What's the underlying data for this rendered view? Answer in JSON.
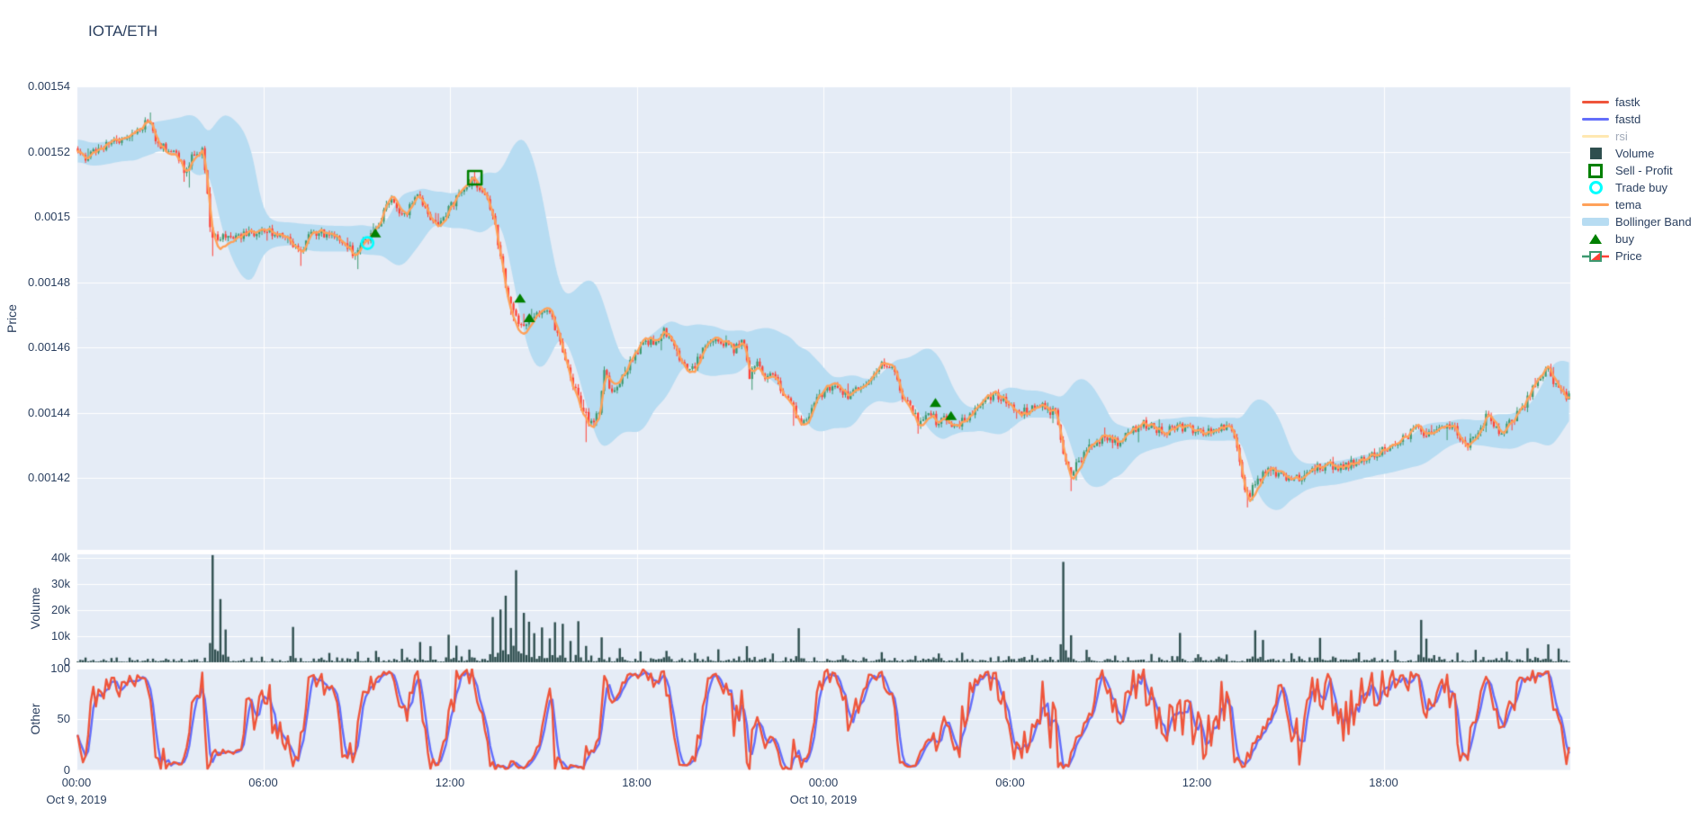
{
  "title": "IOTA/ETH",
  "colors": {
    "background": "#ffffff",
    "panel": "#E5ECF6",
    "grid": "#ffffff",
    "text": "#2a3f5f",
    "muted_text": "rgba(42,63,95,0.45)",
    "fastk": "#EF553B",
    "fastd": "#636EFA",
    "rsi": "#FECB52",
    "tema": "#FFA15A",
    "bollinger": "#b7dcf2",
    "volume": "#2F4F4F",
    "candle_up": "#3D9970",
    "candle_down": "#FF4136",
    "buy_marker": "#008000",
    "sell_profit_marker": "#008000",
    "trade_buy_marker": "#00FFFF"
  },
  "axes": {
    "price": {
      "title": "Price",
      "ticks": [
        {
          "label": "0.00154",
          "value": 0.00154
        },
        {
          "label": "0.00152",
          "value": 0.00152
        },
        {
          "label": "0.0015",
          "value": 0.0015
        },
        {
          "label": "0.00148",
          "value": 0.00148
        },
        {
          "label": "0.00146",
          "value": 0.00146
        },
        {
          "label": "0.00144",
          "value": 0.00144
        },
        {
          "label": "0.00142",
          "value": 0.00142
        }
      ]
    },
    "volume": {
      "title": "Volume",
      "ticks": [
        {
          "label": "0",
          "value": 0
        },
        {
          "label": "10k",
          "value": 10000
        },
        {
          "label": "20k",
          "value": 20000
        },
        {
          "label": "30k",
          "value": 30000
        },
        {
          "label": "40k",
          "value": 40000
        }
      ]
    },
    "other": {
      "title": "Other",
      "ticks": [
        {
          "label": "0",
          "value": 0
        },
        {
          "label": "50",
          "value": 50
        },
        {
          "label": "100",
          "value": 100
        }
      ]
    },
    "x": {
      "ticks": [
        {
          "label": "00:00",
          "hour": 0
        },
        {
          "label": "06:00",
          "hour": 6
        },
        {
          "label": "12:00",
          "hour": 12
        },
        {
          "label": "18:00",
          "hour": 18
        },
        {
          "label": "00:00",
          "hour": 24
        },
        {
          "label": "06:00",
          "hour": 30
        },
        {
          "label": "12:00",
          "hour": 36
        },
        {
          "label": "18:00",
          "hour": 42
        }
      ],
      "date_labels": [
        {
          "label": "Oct 9, 2019",
          "hour": 0
        },
        {
          "label": "Oct 10, 2019",
          "hour": 24
        }
      ]
    }
  },
  "legend": [
    {
      "label": "fastk",
      "glyph": "line",
      "color": "#EF553B",
      "muted": false
    },
    {
      "label": "fastd",
      "glyph": "line",
      "color": "#636EFA",
      "muted": false
    },
    {
      "label": "rsi",
      "glyph": "line",
      "color": "#FECB52",
      "muted": true
    },
    {
      "label": "Volume",
      "glyph": "square",
      "color": "#2F4F4F",
      "muted": false
    },
    {
      "label": "Sell - Profit",
      "glyph": "square-open",
      "color": "#008000",
      "muted": false
    },
    {
      "label": "Trade buy",
      "glyph": "circle-open",
      "color": "#00FFFF",
      "muted": false
    },
    {
      "label": "tema",
      "glyph": "line",
      "color": "#FFA15A",
      "muted": false
    },
    {
      "label": "Bollinger Band",
      "glyph": "band",
      "color": "#b7dcf2",
      "muted": false
    },
    {
      "label": "buy",
      "glyph": "triangle-up",
      "color": "#008000",
      "muted": false
    },
    {
      "label": "Price",
      "glyph": "candlestick",
      "color": "#3D9970",
      "muted": false
    }
  ],
  "seed": 11,
  "chart_data": [
    {
      "type": "candlestick",
      "name": "Price",
      "pair": "IOTA/ETH",
      "x_axis": "time, Oct 9 00:00 - Oct 10 24:00, 2019",
      "x_start_hour": 0,
      "x_end_hour": 48,
      "interval_minutes": 5,
      "ylim": [
        0.001398,
        0.00154
      ],
      "price_keyframes": [
        [
          0,
          0.001521
        ],
        [
          0.3,
          0.001518
        ],
        [
          0.6,
          0.00152
        ],
        [
          1,
          0.001522
        ],
        [
          1.4,
          0.001523
        ],
        [
          1.8,
          0.001525
        ],
        [
          2.1,
          0.001527
        ],
        [
          2.35,
          0.00153
        ],
        [
          2.5,
          0.001526
        ],
        [
          2.7,
          0.001522
        ],
        [
          2.9,
          0.001521
        ],
        [
          3.1,
          0.00152
        ],
        [
          3.3,
          0.001519
        ],
        [
          3.55,
          0.001513
        ],
        [
          3.7,
          0.001518
        ],
        [
          3.9,
          0.00152
        ],
        [
          4.1,
          0.00152
        ],
        [
          4.25,
          0.001508
        ],
        [
          4.35,
          0.001496
        ],
        [
          4.6,
          0.001492
        ],
        [
          4.9,
          0.001495
        ],
        [
          5.3,
          0.001494
        ],
        [
          5.7,
          0.001495
        ],
        [
          6.1,
          0.001496
        ],
        [
          6.5,
          0.001495
        ],
        [
          6.9,
          0.001493
        ],
        [
          7.2,
          0.001489
        ],
        [
          7.5,
          0.001494
        ],
        [
          7.9,
          0.001495
        ],
        [
          8.3,
          0.001494
        ],
        [
          8.6,
          0.001493
        ],
        [
          9,
          0.001488
        ],
        [
          9.2,
          0.001492
        ],
        [
          9.45,
          0.001494
        ],
        [
          9.7,
          0.001497
        ],
        [
          10,
          0.001503
        ],
        [
          10.2,
          0.001505
        ],
        [
          10.45,
          0.001499
        ],
        [
          10.7,
          0.001502
        ],
        [
          11,
          0.001507
        ],
        [
          11.3,
          0.001502
        ],
        [
          11.6,
          0.001497
        ],
        [
          11.9,
          0.001501
        ],
        [
          12.2,
          0.001505
        ],
        [
          12.5,
          0.001508
        ],
        [
          12.75,
          0.001512
        ],
        [
          12.9,
          0.00151
        ],
        [
          13.2,
          0.001507
        ],
        [
          13.5,
          0.001497
        ],
        [
          13.7,
          0.001486
        ],
        [
          13.9,
          0.001476
        ],
        [
          14.1,
          0.001471
        ],
        [
          14.3,
          0.001466
        ],
        [
          14.5,
          0.001468
        ],
        [
          14.7,
          0.001468
        ],
        [
          14.9,
          0.001471
        ],
        [
          15.1,
          0.001472
        ],
        [
          15.3,
          0.00147
        ],
        [
          15.5,
          0.001464
        ],
        [
          15.7,
          0.001456
        ],
        [
          15.9,
          0.001452
        ],
        [
          16.1,
          0.001446
        ],
        [
          16.3,
          0.001441
        ],
        [
          16.55,
          0.001437
        ],
        [
          16.8,
          0.001439
        ],
        [
          17,
          0.001452
        ],
        [
          17.3,
          0.001446
        ],
        [
          17.7,
          0.001453
        ],
        [
          18,
          0.001458
        ],
        [
          18.3,
          0.001462
        ],
        [
          18.6,
          0.001461
        ],
        [
          18.9,
          0.001465
        ],
        [
          19.2,
          0.001463
        ],
        [
          19.45,
          0.001456
        ],
        [
          19.7,
          0.001452
        ],
        [
          20,
          0.001456
        ],
        [
          20.3,
          0.001461
        ],
        [
          20.6,
          0.001463
        ],
        [
          20.9,
          0.001461
        ],
        [
          21.2,
          0.001459
        ],
        [
          21.45,
          0.001464
        ],
        [
          21.65,
          0.001451
        ],
        [
          21.9,
          0.001455
        ],
        [
          22.2,
          0.00145
        ],
        [
          22.45,
          0.001452
        ],
        [
          22.7,
          0.001446
        ],
        [
          23,
          0.001443
        ],
        [
          23.3,
          0.001437
        ],
        [
          23.6,
          0.001439
        ],
        [
          23.9,
          0.001445
        ],
        [
          24.2,
          0.001447
        ],
        [
          24.5,
          0.001448
        ],
        [
          24.8,
          0.001445
        ],
        [
          25.1,
          0.001447
        ],
        [
          25.5,
          0.00145
        ],
        [
          25.9,
          0.001455
        ],
        [
          26.3,
          0.001455
        ],
        [
          26.5,
          0.001446
        ],
        [
          26.8,
          0.001443
        ],
        [
          27.1,
          0.001437
        ],
        [
          27.4,
          0.001441
        ],
        [
          27.7,
          0.001437
        ],
        [
          28,
          0.001438
        ],
        [
          28.3,
          0.001436
        ],
        [
          28.6,
          0.001438
        ],
        [
          28.9,
          0.001441
        ],
        [
          29.3,
          0.001445
        ],
        [
          29.7,
          0.001445
        ],
        [
          30,
          0.001443
        ],
        [
          30.3,
          0.00144
        ],
        [
          30.6,
          0.001441
        ],
        [
          30.9,
          0.001443
        ],
        [
          31.2,
          0.001441
        ],
        [
          31.5,
          0.00144
        ],
        [
          31.75,
          0.001428
        ],
        [
          31.95,
          0.001421
        ],
        [
          32.2,
          0.001424
        ],
        [
          32.5,
          0.001429
        ],
        [
          32.8,
          0.001431
        ],
        [
          33.1,
          0.001433
        ],
        [
          33.5,
          0.001431
        ],
        [
          33.9,
          0.001434
        ],
        [
          34.3,
          0.001437
        ],
        [
          34.7,
          0.001435
        ],
        [
          35,
          0.001434
        ],
        [
          35.4,
          0.001436
        ],
        [
          35.8,
          0.001435
        ],
        [
          36.2,
          0.001434
        ],
        [
          36.6,
          0.001435
        ],
        [
          37,
          0.001436
        ],
        [
          37.3,
          0.001432
        ],
        [
          37.55,
          0.001418
        ],
        [
          37.75,
          0.001415
        ],
        [
          38,
          0.00142
        ],
        [
          38.3,
          0.001422
        ],
        [
          38.7,
          0.001421
        ],
        [
          39.1,
          0.001419
        ],
        [
          39.5,
          0.001421
        ],
        [
          39.9,
          0.001423
        ],
        [
          40.3,
          0.001424
        ],
        [
          40.7,
          0.001423
        ],
        [
          41.1,
          0.001425
        ],
        [
          41.5,
          0.001426
        ],
        [
          41.9,
          0.001428
        ],
        [
          42.3,
          0.00143
        ],
        [
          42.7,
          0.001432
        ],
        [
          43.1,
          0.001435
        ],
        [
          43.5,
          0.001433
        ],
        [
          43.9,
          0.001436
        ],
        [
          44.3,
          0.001435
        ],
        [
          44.75,
          0.00143
        ],
        [
          45.1,
          0.001434
        ],
        [
          45.4,
          0.00144
        ],
        [
          45.8,
          0.001433
        ],
        [
          46.2,
          0.001438
        ],
        [
          46.6,
          0.001443
        ],
        [
          47,
          0.00145
        ],
        [
          47.3,
          0.001453
        ],
        [
          47.6,
          0.001448
        ],
        [
          47.9,
          0.001445
        ],
        [
          48,
          0.001445
        ]
      ],
      "wick_events": [
        {
          "h": 2.35,
          "high": 0.001532
        },
        {
          "h": 3.55,
          "low": 0.001509
        },
        {
          "h": 4.35,
          "low": 0.001488
        },
        {
          "h": 7.2,
          "low": 0.001485
        },
        {
          "h": 9,
          "low": 0.001484
        },
        {
          "h": 12.75,
          "high": 0.001514
        },
        {
          "h": 13.9,
          "low": 0.00147
        },
        {
          "h": 16.3,
          "low": 0.001431
        },
        {
          "h": 21.65,
          "low": 0.001447
        },
        {
          "h": 23,
          "low": 0.001436
        },
        {
          "h": 31.95,
          "low": 0.001416
        },
        {
          "h": 37.55,
          "low": 0.001411
        },
        {
          "h": 47.3,
          "high": 0.001455
        }
      ],
      "overlays": [
        {
          "name": "tema",
          "type": "line",
          "color": "#FFA15A",
          "period": 8
        },
        {
          "name": "Bollinger Band",
          "type": "band",
          "color": "#b7dcf2",
          "window": 20,
          "stddev_mult": 2
        }
      ],
      "markers": {
        "buy": [
          [
            9.6,
            0.001495
          ],
          [
            14.25,
            0.001475
          ],
          [
            14.55,
            0.001469
          ],
          [
            27.6,
            0.001443
          ],
          [
            28.1,
            0.001439
          ]
        ],
        "sell_profit": [
          [
            12.8,
            0.001512
          ]
        ],
        "trade_buy": [
          [
            9.35,
            0.001492
          ]
        ]
      }
    },
    {
      "type": "bar",
      "name": "Volume",
      "ylim": [
        0,
        41500
      ],
      "baseline_range": [
        250,
        2800
      ],
      "spikes": [
        [
          4.3,
          41200
        ],
        [
          4.55,
          24300
        ],
        [
          4.75,
          12600
        ],
        [
          6.9,
          13600
        ],
        [
          8.1,
          3600
        ],
        [
          9,
          4100
        ],
        [
          9.6,
          4400
        ],
        [
          10.4,
          5200
        ],
        [
          11,
          7800
        ],
        [
          11.3,
          6200
        ],
        [
          11.9,
          10600
        ],
        [
          12.2,
          6400
        ],
        [
          12.6,
          4900
        ],
        [
          13.3,
          17400
        ],
        [
          13.55,
          20300
        ],
        [
          13.75,
          25600
        ],
        [
          13.95,
          13200
        ],
        [
          14.1,
          35400
        ],
        [
          14.3,
          19000
        ],
        [
          14.5,
          15600
        ],
        [
          14.7,
          11200
        ],
        [
          14.95,
          13400
        ],
        [
          15.15,
          9200
        ],
        [
          15.35,
          15400
        ],
        [
          15.55,
          14800
        ],
        [
          15.8,
          8200
        ],
        [
          16.05,
          15800
        ],
        [
          16.35,
          6300
        ],
        [
          16.8,
          9600
        ],
        [
          17.4,
          5400
        ],
        [
          18.1,
          4200
        ],
        [
          18.9,
          4400
        ],
        [
          19.8,
          3600
        ],
        [
          20.6,
          5000
        ],
        [
          21.5,
          6200
        ],
        [
          22.3,
          3400
        ],
        [
          23.2,
          13100
        ],
        [
          24.6,
          2700
        ],
        [
          25.8,
          3900
        ],
        [
          26.9,
          2500
        ],
        [
          27.7,
          3400
        ],
        [
          28.4,
          3700
        ],
        [
          29.6,
          2300
        ],
        [
          30.7,
          2800
        ],
        [
          31.7,
          38600
        ],
        [
          31.9,
          10400
        ],
        [
          32.4,
          4800
        ],
        [
          33.3,
          2600
        ],
        [
          34.5,
          3200
        ],
        [
          35.4,
          11300
        ],
        [
          36,
          3100
        ],
        [
          36.9,
          3000
        ],
        [
          37.8,
          12300
        ],
        [
          38.05,
          8600
        ],
        [
          39,
          3500
        ],
        [
          39.95,
          9400
        ],
        [
          41.2,
          3800
        ],
        [
          42.3,
          4600
        ],
        [
          43.15,
          16300
        ],
        [
          43.35,
          9100
        ],
        [
          44.3,
          3700
        ],
        [
          44.9,
          4800
        ],
        [
          45.9,
          4100
        ],
        [
          46.6,
          5400
        ],
        [
          47.25,
          6900
        ],
        [
          47.55,
          5300
        ]
      ]
    },
    {
      "type": "line",
      "name": "Other",
      "ylim": [
        0,
        100
      ],
      "series": [
        {
          "name": "fastk",
          "color": "#EF553B",
          "derivation": "stochastic %K of price, 14-bar window"
        },
        {
          "name": "fastd",
          "color": "#636EFA",
          "derivation": "3-bar SMA of fastk"
        }
      ],
      "hidden_series": [
        {
          "name": "rsi",
          "color": "#FECB52",
          "state": "legend muted / not drawn"
        }
      ]
    }
  ]
}
